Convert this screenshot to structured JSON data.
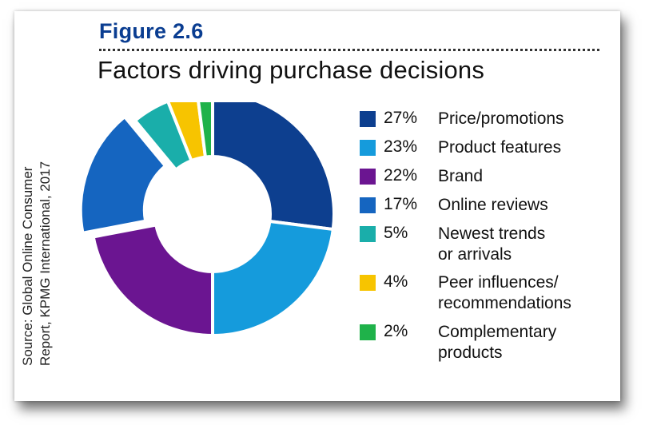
{
  "figure_label": "Figure 2.6",
  "title": "Factors driving purchase decisions",
  "source": {
    "line1": "Source: Global Online Consumer",
    "line2": "Report, KPMG International, 2017"
  },
  "chart_data": {
    "type": "pie",
    "title": "Factors driving purchase decisions",
    "legend_position": "right",
    "slices": [
      {
        "pct_label": "27%",
        "value": 27,
        "label_lines": [
          "Price/promotions"
        ],
        "color": "#0d3f8f"
      },
      {
        "pct_label": "23%",
        "value": 23,
        "label_lines": [
          "Product features"
        ],
        "color": "#159bdc"
      },
      {
        "pct_label": "22%",
        "value": 22,
        "label_lines": [
          "Brand"
        ],
        "color": "#6b1591"
      },
      {
        "pct_label": "17%",
        "value": 17,
        "label_lines": [
          "Online reviews"
        ],
        "color": "#1565c0"
      },
      {
        "pct_label": "5%",
        "value": 5,
        "label_lines": [
          "Newest trends",
          "or arrivals"
        ],
        "color": "#1aaeaa"
      },
      {
        "pct_label": "4%",
        "value": 4,
        "label_lines": [
          "Peer influences/",
          "recommendations"
        ],
        "color": "#f7c400"
      },
      {
        "pct_label": "2%",
        "value": 2,
        "label_lines": [
          "Complementary",
          "products"
        ],
        "color": "#1fb24a"
      }
    ]
  }
}
